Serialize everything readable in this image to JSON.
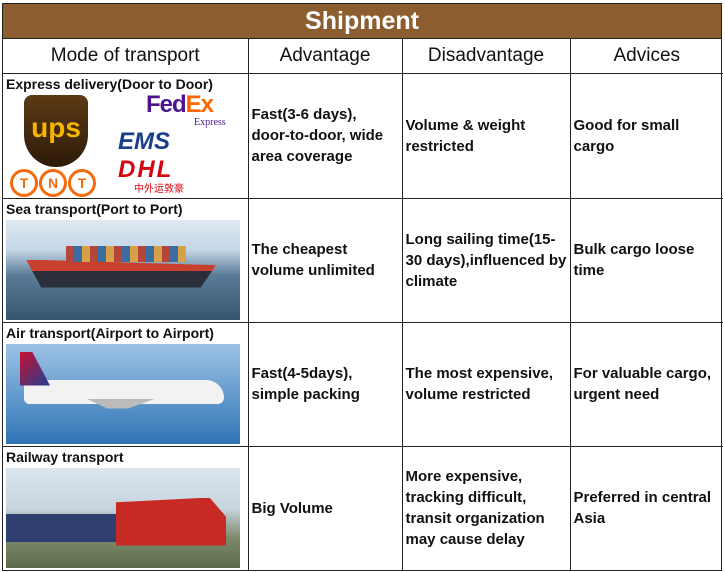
{
  "title": "Shipment",
  "headers": [
    "Mode of transport",
    "Advantage",
    "Disadvantage",
    "Advices"
  ],
  "rows": [
    {
      "mode": "Express delivery(Door to Door)",
      "image": "courier-logos",
      "advantage": "Fast(3-6 days), door-to-door, wide area coverage",
      "disadvantage": "Volume & weight restricted",
      "advice": "Good for small cargo"
    },
    {
      "mode": "Sea transport(Port to Port)",
      "image": "container-ship",
      "advantage": "The cheapest volume unlimited",
      "disadvantage": "Long sailing time(15-30 days),influenced by climate",
      "advice": "Bulk cargo loose time"
    },
    {
      "mode": "Air transport(Airport to Airport)",
      "image": "airplane",
      "advantage": "Fast(4-5days), simple packing",
      "disadvantage": "The most expensive, volume restricted",
      "advice": "For valuable cargo, urgent need"
    },
    {
      "mode": "Railway transport",
      "image": "train",
      "advantage": "Big Volume",
      "disadvantage": "More expensive, tracking difficult, transit organization may cause delay",
      "advice": "Preferred in central Asia"
    }
  ],
  "logos": {
    "ups": "ups",
    "fedex_a": "Fed",
    "fedex_b": "Ex",
    "fedex_sub": "Express",
    "ems": "EMS",
    "tnt": [
      "T",
      "N",
      "T"
    ],
    "dhl": "DHL",
    "dhl_cn": "中外运敦豪"
  },
  "colors": {
    "title_bg": "#8c5d2e"
  }
}
